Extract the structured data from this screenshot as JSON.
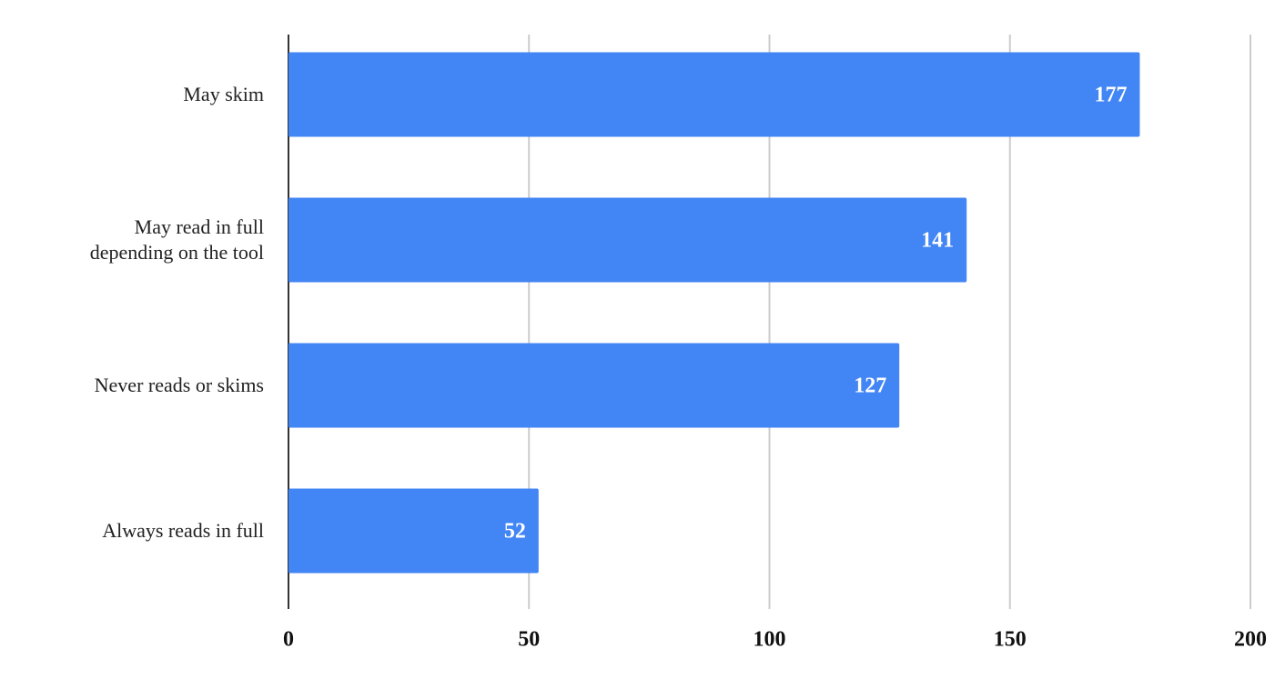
{
  "chart_data": {
    "type": "bar",
    "orientation": "horizontal",
    "categories": [
      "May skim",
      "May read in full\ndepending on the tool",
      "Never reads or skims",
      "Always reads in full"
    ],
    "values": [
      177,
      141,
      127,
      52
    ],
    "color": "#4285f4",
    "xlim": [
      0,
      200
    ],
    "xticks": [
      0,
      50,
      100,
      150,
      200
    ],
    "grid": true
  }
}
